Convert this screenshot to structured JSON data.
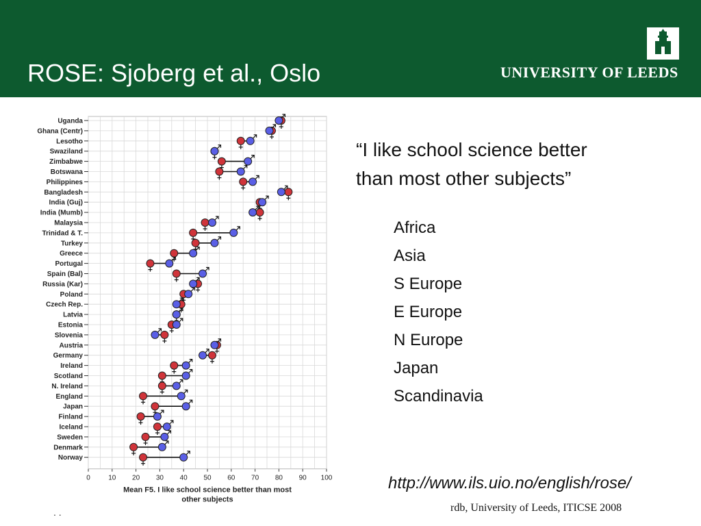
{
  "slide": {
    "title": "ROSE: Sjoberg et al., Oslo",
    "university": "UNIVERSITY OF LEEDS",
    "quote_line1": "“I like school science better",
    "quote_line2": "than most other subjects”",
    "regions": [
      "Africa",
      "Asia",
      "S Europe",
      "E Europe",
      "N Europe",
      "Japan",
      "Scandinavia"
    ],
    "url": "http://www.ils.uio.no/english/rose/",
    "footer": "rdb, University of Leeds, ITICSE 2008",
    "corner_mark": ". ."
  },
  "colors": {
    "header": "#0d5a2f",
    "female": "#d0343a",
    "male": "#5a5fe6"
  },
  "chart_data": {
    "type": "scatter",
    "xlabel_line1": "Mean F5. I like school science better than most",
    "xlabel_line2": "other subjects",
    "xlim": [
      0,
      100
    ],
    "xticks": [
      0,
      10,
      20,
      30,
      40,
      50,
      60,
      70,
      80,
      90,
      100
    ],
    "grid": true,
    "categories": [
      "Uganda",
      "Ghana (Centr)",
      "Lesotho",
      "Swaziland",
      "Zimbabwe",
      "Botswana",
      "Philippines",
      "Bangladesh",
      "India (Guj)",
      "India (Mumb)",
      "Malaysia",
      "Trinidad & T.",
      "Turkey",
      "Greece",
      "Portugal",
      "Spain (Bal)",
      "Russia (Kar)",
      "Poland",
      "Czech Rep.",
      "Latvia",
      "Estonia",
      "Slovenia",
      "Austria",
      "Germany",
      "Ireland",
      "Scotland",
      "N. Ireland",
      "England",
      "Japan",
      "Finland",
      "Iceland",
      "Sweden",
      "Denmark",
      "Norway"
    ],
    "series": [
      {
        "name": "Girls",
        "symbol": "♀",
        "values": [
          81,
          77,
          64,
          53,
          56,
          55,
          65,
          84,
          72,
          72,
          49,
          44,
          45,
          36,
          26,
          37,
          46,
          40,
          39,
          37,
          35,
          32,
          54,
          52,
          36,
          31,
          31,
          23,
          28,
          22,
          29,
          24,
          19,
          23
        ]
      },
      {
        "name": "Boys",
        "symbol": "♂",
        "values": [
          80,
          76,
          68,
          53,
          67,
          64,
          69,
          81,
          73,
          69,
          52,
          61,
          53,
          44,
          34,
          48,
          44,
          42,
          37,
          37,
          37,
          28,
          53,
          48,
          41,
          41,
          37,
          39,
          41,
          29,
          33,
          32,
          31,
          40
        ]
      }
    ]
  }
}
